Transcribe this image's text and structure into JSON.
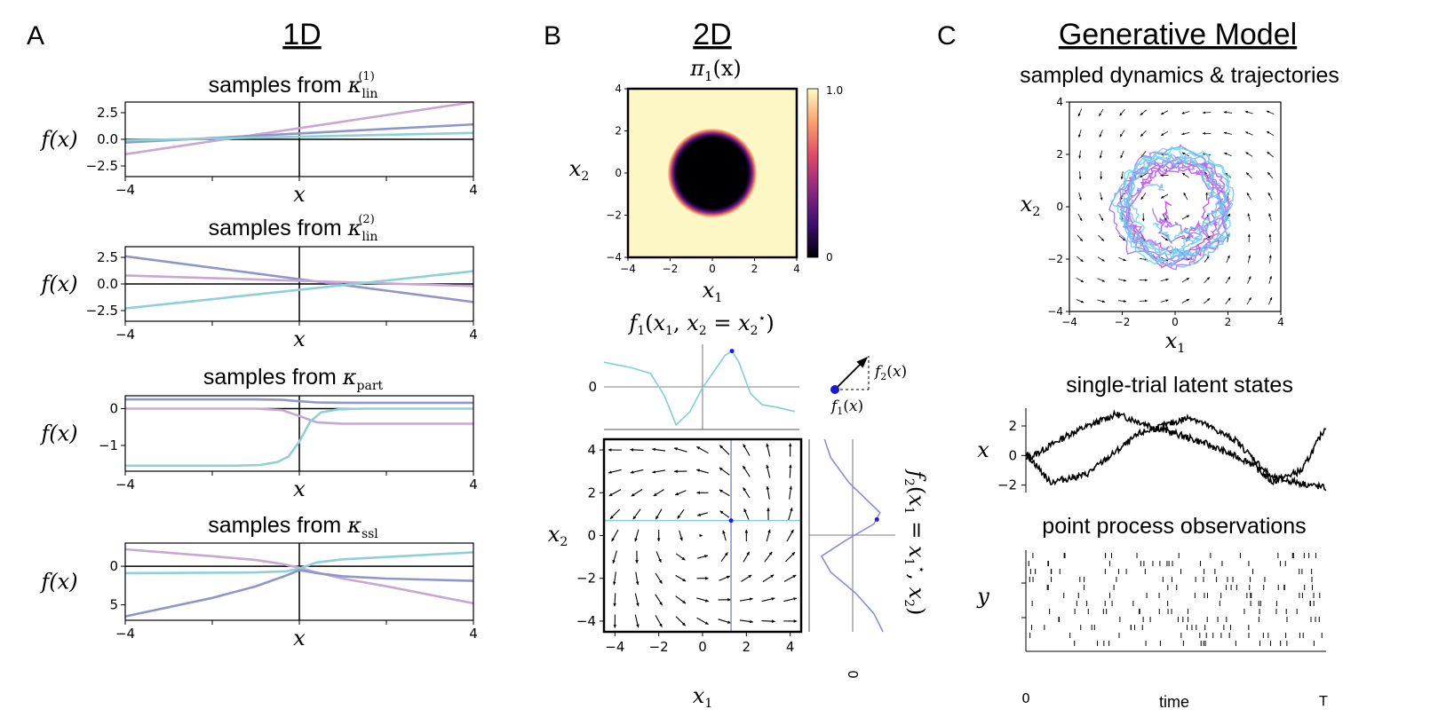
{
  "panels": {
    "A": {
      "letter": "A",
      "title": "1D"
    },
    "B": {
      "letter": "B",
      "title": "2D"
    },
    "C": {
      "letter": "C",
      "title": "Generative Model"
    }
  },
  "labels": {
    "fx": "f(x)",
    "x": "x",
    "x1": "x",
    "x2": "x",
    "y": "y",
    "time": "time",
    "t0": "0",
    "tT": "T",
    "zero": "0"
  },
  "chart_data": [
    {
      "id": "A1",
      "type": "line",
      "title": "samples from κ",
      "kernel": {
        "base": "κ",
        "sub": "lin",
        "sup": "(1)"
      },
      "xlabel": "x",
      "ylabel": "f(x)",
      "xlim": [
        -4,
        4
      ],
      "ylim": [
        -3.5,
        3.5
      ],
      "yticks": [
        "2.5",
        "0.0",
        "−2.5"
      ],
      "ytick_values": [
        2.5,
        0,
        -2.5
      ],
      "xticks": [
        "−4",
        "4"
      ],
      "series": [
        {
          "color": "#c9a6d4",
          "x": [
            -4,
            4
          ],
          "y": [
            -1.4,
            4.3
          ]
        },
        {
          "color": "#8f96c9",
          "x": [
            -4,
            4
          ],
          "y": [
            -0.3,
            1.4
          ]
        },
        {
          "color": "#8fd0d6",
          "x": [
            -4,
            4
          ],
          "y": [
            -0.1,
            0.6
          ]
        }
      ]
    },
    {
      "id": "A2",
      "type": "line",
      "title": "samples from κ",
      "kernel": {
        "base": "κ",
        "sub": "lin",
        "sup": "(2)"
      },
      "xlabel": "x",
      "ylabel": "f(x)",
      "xlim": [
        -4,
        4
      ],
      "ylim": [
        -3.5,
        3.5
      ],
      "yticks": [
        "2.5",
        "0.0",
        "−2.5"
      ],
      "ytick_values": [
        2.5,
        0,
        -2.5
      ],
      "xticks": [
        "−4",
        "4"
      ],
      "series": [
        {
          "color": "#8f96c9",
          "x": [
            -4,
            4
          ],
          "y": [
            2.6,
            -1.7
          ]
        },
        {
          "color": "#c9a6d4",
          "x": [
            -4,
            4
          ],
          "y": [
            0.8,
            -0.2
          ]
        },
        {
          "color": "#8fd0d6",
          "x": [
            -4,
            4
          ],
          "y": [
            -2.3,
            1.2
          ]
        }
      ]
    },
    {
      "id": "A3",
      "type": "line",
      "title": "samples from κ",
      "kernel": {
        "base": "κ",
        "sub": "part",
        "sup": ""
      },
      "xlabel": "x",
      "ylabel": "f(x)",
      "xlim": [
        -4,
        4
      ],
      "ylim": [
        -1.7,
        0.35
      ],
      "yticks": [
        "0",
        "−1"
      ],
      "ytick_values": [
        0,
        -1
      ],
      "xticks": [
        "−4",
        "4"
      ],
      "series": [
        {
          "color": "#8f96c9",
          "x": [
            -4,
            -1,
            -0.4,
            0,
            0.4,
            1,
            4
          ],
          "y": [
            0.25,
            0.25,
            0.24,
            0.2,
            0.17,
            0.16,
            0.16
          ]
        },
        {
          "color": "#c9a6d4",
          "x": [
            -4,
            -1,
            -0.4,
            0,
            0.4,
            1,
            4
          ],
          "y": [
            0.0,
            0.0,
            -0.04,
            -0.2,
            -0.37,
            -0.41,
            -0.41
          ]
        },
        {
          "color": "#8fd0d6",
          "x": [
            -4,
            -1.5,
            -0.9,
            -0.5,
            -0.25,
            0,
            0.25,
            0.5,
            0.9,
            1.5,
            4
          ],
          "y": [
            -1.55,
            -1.55,
            -1.53,
            -1.45,
            -1.3,
            -0.9,
            -0.35,
            -0.1,
            -0.02,
            0.0,
            0.0
          ]
        }
      ]
    },
    {
      "id": "A4",
      "type": "line",
      "title": "samples from κ",
      "kernel": {
        "base": "κ",
        "sub": "ssl",
        "sup": ""
      },
      "xlabel": "x",
      "ylabel": "f(x)",
      "xlim": [
        -4,
        4
      ],
      "ylim": [
        -3,
        7
      ],
      "yinvert": true,
      "yticks": [
        "0",
        "5"
      ],
      "ytick_values": [
        0,
        5
      ],
      "xticks": [
        "−4",
        "4"
      ],
      "series": [
        {
          "color": "#c9a6d4",
          "x": [
            -4,
            -2,
            -1,
            -0.4,
            0,
            0.4,
            1,
            2,
            4
          ],
          "y": [
            -2.2,
            -1.3,
            -0.8,
            -0.3,
            0.2,
            0.8,
            1.6,
            2.6,
            4.8
          ]
        },
        {
          "color": "#8fd0d6",
          "x": [
            -4,
            -1,
            -0.3,
            0,
            0.4,
            1,
            2,
            4
          ],
          "y": [
            0.9,
            0.8,
            0.65,
            0.3,
            -0.5,
            -0.9,
            -1.2,
            -1.8
          ]
        },
        {
          "color": "#8f96c9",
          "x": [
            -4,
            -2,
            -1,
            -0.3,
            0,
            0.4,
            1,
            2,
            4
          ],
          "y": [
            6.5,
            4.1,
            2.6,
            1.2,
            0.5,
            0.9,
            1.3,
            1.6,
            1.9
          ]
        }
      ]
    },
    {
      "id": "B1",
      "type": "heatmap",
      "title": "π",
      "func": {
        "base": "π",
        "sub": "1",
        "arg": "(x)"
      },
      "xlabel": "x",
      "ylabel": "x",
      "xlim": [
        -4,
        4
      ],
      "ylim": [
        -4,
        4
      ],
      "xticks": [
        "−4",
        "−2",
        "0",
        "2",
        "4"
      ],
      "yticks": [
        "4",
        "2",
        "0",
        "−2",
        "−4"
      ],
      "colorbar": {
        "min": "0",
        "max": "1.0",
        "colors": [
          "#000004",
          "#3b0f70",
          "#8c2981",
          "#de4968",
          "#fe9f6d",
          "#fcfdbf"
        ]
      },
      "hole_radius": 1.9
    },
    {
      "id": "B2",
      "type": "line",
      "title": "f(x, x = x)",
      "series": [
        {
          "color": "#7fcfd4",
          "x": [
            -4.2,
            -3.0,
            -2.2,
            -1.6,
            -1.1,
            -0.5,
            0,
            0.6,
            1.0,
            1.3,
            1.6,
            2.1,
            2.6,
            3.2,
            4.0
          ],
          "y": [
            1.2,
            0.95,
            0.7,
            -0.3,
            -1.6,
            -1.0,
            0.0,
            0.9,
            1.5,
            1.7,
            1.2,
            -0.2,
            -0.7,
            -0.8,
            -1.0
          ]
        }
      ],
      "xlim": [
        -4.2,
        4.2
      ],
      "ylim": [
        -1.8,
        2.0
      ],
      "yticks": [
        "0"
      ],
      "point": {
        "x": 1.3,
        "y": 1.7
      }
    },
    {
      "id": "B3",
      "type": "line",
      "title": "f(x = x, x)",
      "series": [
        {
          "color": "#8a8fcf",
          "x": [
            -0.5,
            -0.3,
            0.3,
            1.3,
            1.1,
            0.2,
            -0.6,
            -0.3,
            0.5,
            1.1,
            1.4
          ],
          "y": [
            4.2,
            3.4,
            2.3,
            1.0,
            0.5,
            -0.2,
            -0.9,
            -1.6,
            -2.5,
            -3.4,
            -4.2
          ]
        }
      ],
      "xlim": [
        -1,
        1.8
      ],
      "ylim": [
        -4.2,
        4.2
      ],
      "xticks": [
        "0"
      ],
      "point": {
        "x": 1.2,
        "y": 0.7
      }
    },
    {
      "id": "B4",
      "type": "quiver",
      "xlabel": "x",
      "ylabel": "x",
      "xlim": [
        -4.5,
        4.5
      ],
      "ylim": [
        -4.5,
        4.5
      ],
      "xticks": [
        "−4",
        "−2",
        "0",
        "2",
        "4"
      ],
      "yticks": [
        "4",
        "2",
        "0",
        "−2",
        "−4"
      ],
      "slice": {
        "x": 1.3,
        "y": 0.7
      },
      "legend": {
        "f2": "f(x)",
        "f1": "f(x)"
      }
    },
    {
      "id": "C1",
      "type": "quiver",
      "title": "sampled dynamics & trajectories",
      "xlabel": "x",
      "ylabel": "x",
      "xlim": [
        -4,
        4
      ],
      "ylim": [
        -4,
        4
      ],
      "xticks": [
        "−4",
        "−2",
        "0",
        "2",
        "4"
      ],
      "yticks": [
        "4",
        "2",
        "0",
        "−2",
        "−4"
      ],
      "trajectory_colors": [
        "#c43df0",
        "#a06cf0",
        "#7fb6f2",
        "#5ed3f0"
      ]
    },
    {
      "id": "C2",
      "type": "line",
      "title": "single-trial latent states",
      "ylabel": "x",
      "ylim": [
        -2.5,
        3.2
      ],
      "yticks": [
        "2",
        "0",
        "−2"
      ],
      "ytick_values": [
        2,
        0,
        -2
      ]
    },
    {
      "id": "C3",
      "type": "scatter",
      "title": "point process observations",
      "xlabel": "time",
      "ylabel": "y",
      "xticks": [
        "0",
        "T"
      ]
    }
  ]
}
